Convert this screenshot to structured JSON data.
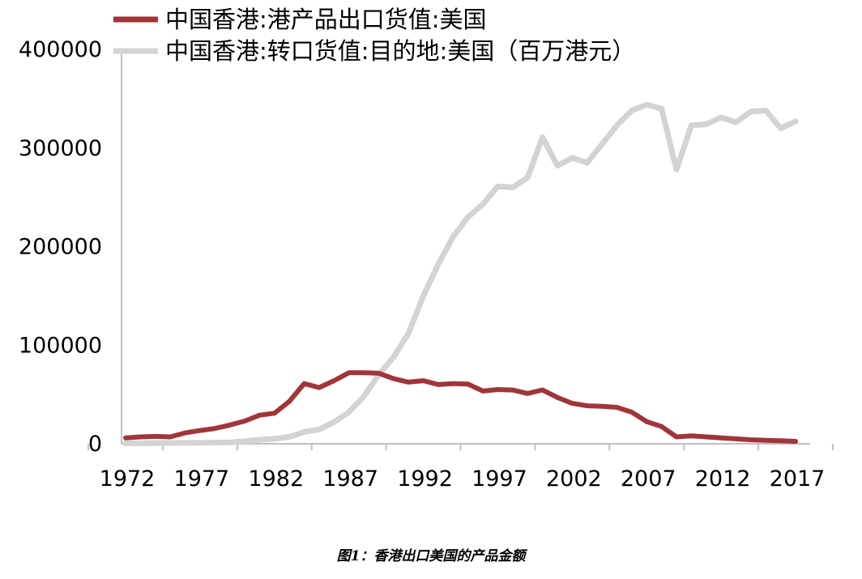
{
  "caption": "图1：香港出口美国的产品金额",
  "colors": {
    "domestic": "#a0353a",
    "reexport": "#d3d3d3",
    "axis": "#bfbfbf"
  },
  "chart_data": {
    "type": "line",
    "title": "",
    "xlabel": "",
    "ylabel": "",
    "ylim": [
      0,
      400000
    ],
    "xlim": [
      1972,
      2017
    ],
    "y_ticks": [
      "0",
      "100000",
      "200000",
      "300000",
      "400000"
    ],
    "x_ticks": [
      "1972",
      "1977",
      "1982",
      "1987",
      "1992",
      "1997",
      "2002",
      "2007",
      "2012",
      "2017"
    ],
    "legend_position": "top-left",
    "grid": false,
    "x": [
      1972,
      1973,
      1974,
      1975,
      1976,
      1977,
      1978,
      1979,
      1980,
      1981,
      1982,
      1983,
      1984,
      1985,
      1986,
      1987,
      1988,
      1989,
      1990,
      1991,
      1992,
      1993,
      1994,
      1995,
      1996,
      1997,
      1998,
      1999,
      2000,
      2001,
      2002,
      2003,
      2004,
      2005,
      2006,
      2007,
      2008,
      2009,
      2010,
      2011,
      2012,
      2013,
      2014,
      2015,
      2016,
      2017
    ],
    "series": [
      {
        "name": "中国香港:港产品出口货值:美国",
        "key": "domestic",
        "values": [
          6000,
          7000,
          7500,
          7000,
          11000,
          13500,
          15500,
          19000,
          23000,
          29000,
          31000,
          43000,
          61000,
          57000,
          64000,
          72000,
          72000,
          71500,
          66000,
          62500,
          64000,
          60000,
          61000,
          60500,
          53500,
          55000,
          54500,
          51000,
          54500,
          47000,
          41000,
          38500,
          38000,
          37000,
          32000,
          22500,
          17500,
          7000,
          8000,
          7000,
          6000,
          5000,
          4000,
          3500,
          3000,
          2500
        ]
      },
      {
        "name": "中国香港:转口货值:目的地:美国（百万港元）",
        "key": "reexport",
        "values": [
          500,
          500,
          700,
          800,
          900,
          1000,
          1200,
          1500,
          2500,
          4000,
          5000,
          7000,
          12000,
          14500,
          22000,
          32000,
          48000,
          70000,
          88000,
          112000,
          150000,
          182000,
          210000,
          230000,
          243000,
          261000,
          260000,
          270000,
          311000,
          282000,
          290000,
          285000,
          304000,
          323000,
          338000,
          344000,
          340000,
          278000,
          323000,
          324000,
          331000,
          326000,
          337000,
          338000,
          320000,
          327000
        ]
      }
    ]
  }
}
